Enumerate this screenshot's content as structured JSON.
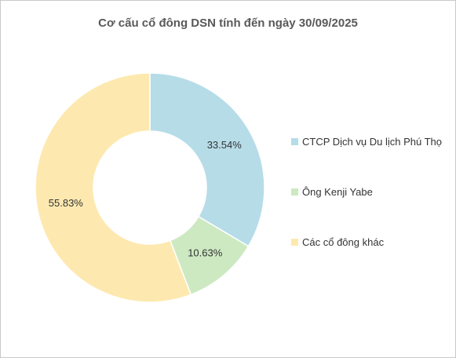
{
  "chart_data": {
    "type": "pie",
    "variant": "donut",
    "title": "Cơ cấu cổ đông DSN tính đến ngày 30/09/2025",
    "series": [
      {
        "name": "CTCP Dịch vụ Du lịch Phú Thọ",
        "value": 33.54,
        "label": "33.54%",
        "color": "#b6dce8"
      },
      {
        "name": "Ông Kenji Yabe",
        "value": 10.63,
        "label": "10.63%",
        "color": "#cde9c2"
      },
      {
        "name": "Các cổ đông khác",
        "value": 55.83,
        "label": "55.83%",
        "color": "#fde9b0"
      }
    ],
    "legend_position": "right"
  }
}
